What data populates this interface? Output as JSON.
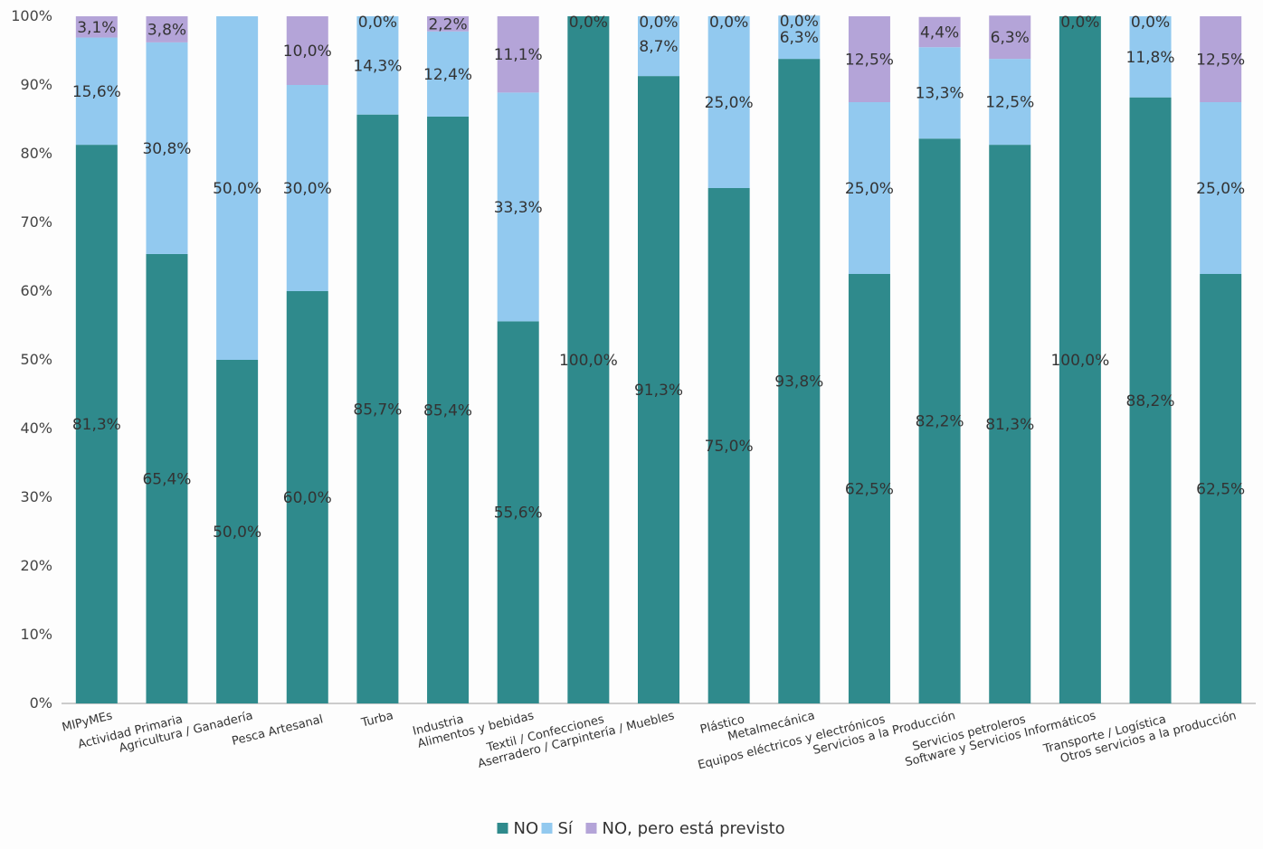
{
  "chart_data": {
    "type": "bar",
    "stacked": true,
    "percent": true,
    "ylim": [
      0,
      100
    ],
    "ytick_labels": [
      "0%",
      "10%",
      "20%",
      "30%",
      "40%",
      "50%",
      "60%",
      "70%",
      "80%",
      "90%",
      "100%"
    ],
    "grid": false,
    "legend_position": "bottom",
    "categories": [
      "MIPyMEs",
      "Actividad Primaria",
      "Agricultura / Ganadería",
      "Pesca Artesanal",
      "Turba",
      "Industria",
      "Alimentos y bebidas",
      "Textil / Confecciones",
      "Aserradero / Carpintería / Muebles",
      "Plástico",
      "Metalmecánica",
      "Equipos eléctricos y electrónicos",
      "Servicios a la Producción",
      "Servicios petroleros",
      "Software y Servicios Informáticos",
      "Transporte / Logística",
      "Otros servicios a la producción"
    ],
    "series": [
      {
        "name": "NO",
        "color": "#2f8a8c",
        "values": [
          81.3,
          65.4,
          50.0,
          60.0,
          85.7,
          85.4,
          55.6,
          100.0,
          91.3,
          75.0,
          93.8,
          62.5,
          82.2,
          81.3,
          100.0,
          88.2,
          62.5
        ],
        "labels": [
          "81,3%",
          "65,4%",
          "50,0%",
          "60,0%",
          "85,7%",
          "85,4%",
          "55,6%",
          "100,0%",
          "91,3%",
          "75,0%",
          "93,8%",
          "62,5%",
          "82,2%",
          "81,3%",
          "100,0%",
          "88,2%",
          "62,5%"
        ]
      },
      {
        "name": "Sí",
        "color": "#92c9ef",
        "values": [
          15.6,
          30.8,
          50.0,
          30.0,
          14.3,
          12.4,
          33.3,
          0.0,
          8.7,
          25.0,
          6.3,
          25.0,
          13.3,
          12.5,
          0.0,
          11.8,
          25.0
        ],
        "labels": [
          "15,6%",
          "30,8%",
          "50,0%",
          "30,0%",
          "14,3%",
          "12,4%",
          "33,3%",
          "",
          "8,7%",
          "25,0%",
          "6,3%",
          "25,0%",
          "13,3%",
          "12,5%",
          "",
          "11,8%",
          "25,0%"
        ]
      },
      {
        "name": "NO, pero está previsto",
        "color": "#b4a4d8",
        "values": [
          3.1,
          3.8,
          0.0,
          10.0,
          0.0,
          2.2,
          11.1,
          0.0,
          0.0,
          0.0,
          0.0,
          12.5,
          4.4,
          6.3,
          0.0,
          0.0,
          12.5
        ],
        "labels": [
          "3,1%",
          "3,8%",
          "",
          "10,0%",
          "0,0%",
          "2,2%",
          "11,1%",
          "0,0%",
          "0,0%",
          "0,0%",
          "0,0%",
          "12,5%",
          "4,4%",
          "6,3%",
          "0,0%",
          "0,0%",
          "12,5%"
        ]
      }
    ]
  }
}
